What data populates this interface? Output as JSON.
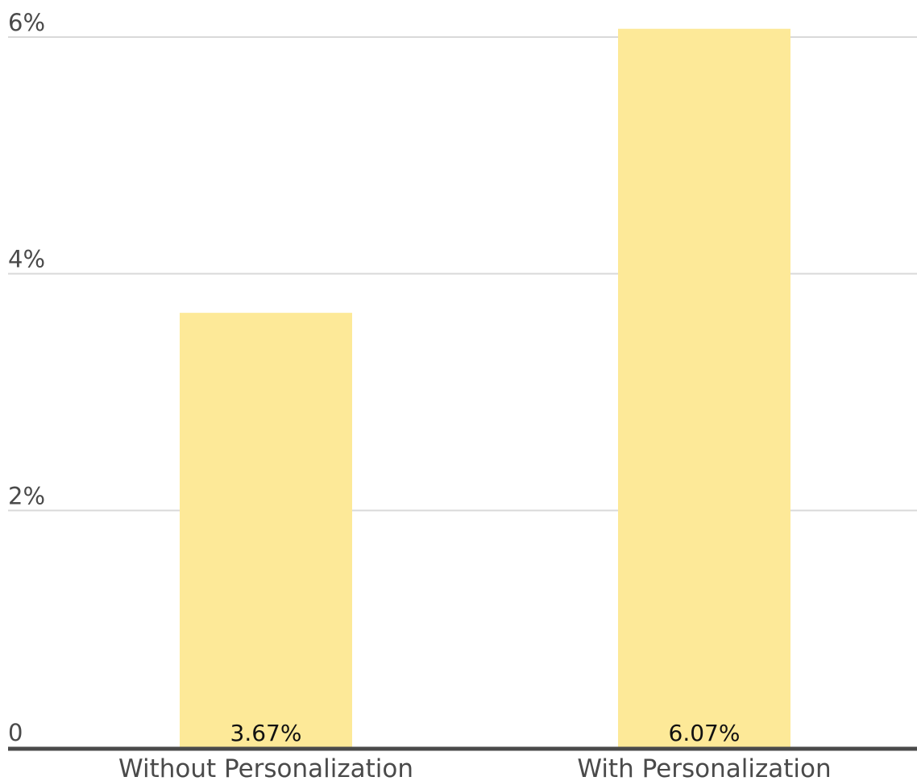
{
  "chart_data": {
    "type": "bar",
    "categories": [
      "Without Personalization",
      "With Personalization"
    ],
    "values": [
      3.67,
      6.07
    ],
    "data_labels": [
      "3.67%",
      "6.07%"
    ],
    "title": "",
    "xlabel": "",
    "ylabel": "",
    "ylim": [
      0,
      6
    ],
    "y_ticks": [
      0,
      2,
      4,
      6
    ],
    "y_tick_labels": [
      "0",
      "2%",
      "4%",
      "6%"
    ],
    "grid": true,
    "legend": "none",
    "colors": {
      "bar": "#fde998",
      "grid": "#d9d9d9",
      "baseline": "#4a4a4a",
      "text": "#4a4a4a",
      "data_label": "#111111"
    }
  }
}
